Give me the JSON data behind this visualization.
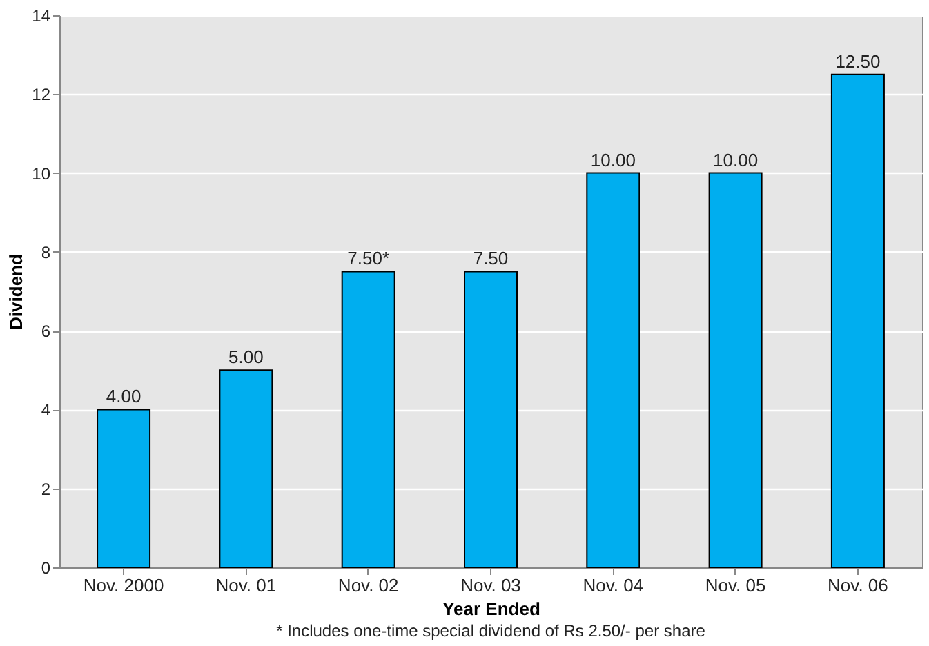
{
  "chart_data": {
    "type": "bar",
    "categories": [
      "Nov. 2000",
      "Nov. 01",
      "Nov. 02",
      "Nov. 03",
      "Nov. 04",
      "Nov. 05",
      "Nov. 06"
    ],
    "values": [
      4.0,
      5.0,
      7.5,
      7.5,
      10.0,
      10.0,
      12.5
    ],
    "value_labels": [
      "4.00",
      "5.00",
      "7.50*",
      "7.50",
      "10.00",
      "10.00",
      "12.50"
    ],
    "color": "#00aeef",
    "xlabel": "Year Ended",
    "ylabel": "Dividend",
    "ylim": [
      0,
      14
    ],
    "yticks": [
      0,
      2,
      4,
      6,
      8,
      10,
      12,
      14
    ],
    "grid": "y",
    "annotations": [
      "* Includes one-time special dividend of Rs 2.50/- per share"
    ]
  }
}
